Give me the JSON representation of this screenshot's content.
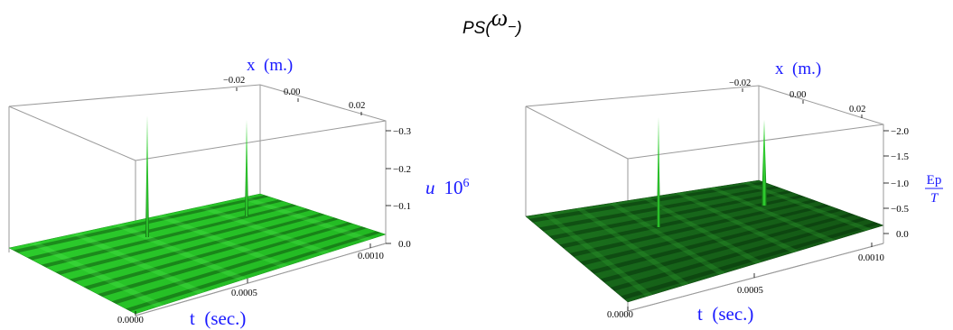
{
  "figure": {
    "title_main": "PS(",
    "title_symbol": "ω",
    "title_subscript": "−",
    "title_close": ")"
  },
  "colors": {
    "surface_light": "#2fd12f",
    "surface_mid": "#1aa51a",
    "surface_dark": "#0b3d0b",
    "axis_label": "#1a1aff",
    "box_line": "#9a9a9a",
    "tick_text": "#000000"
  },
  "chart_data": [
    {
      "type": "surface3d",
      "xlabel": "x  (m.)",
      "tlabel": "t  (sec.)",
      "zlabel_main": "u",
      "zlabel_exp_base": "10",
      "zlabel_exp_power": "6",
      "x_ticks": [
        "−0.02",
        "0.00",
        "0.02"
      ],
      "t_ticks": [
        "0.0000",
        "0.0005",
        "0.0010"
      ],
      "z_ticks": [
        "−0.3",
        "−0.2",
        "−0.1",
        "0.0"
      ],
      "x_range": [
        -0.02,
        0.02
      ],
      "t_range": [
        0.0,
        0.001
      ],
      "z_range": [
        0.0,
        -0.3
      ],
      "grid": false,
      "peaks": [
        {
          "x": 0.0,
          "t": 0.0003,
          "z": -0.28
        },
        {
          "x": 0.0,
          "t": 0.0007,
          "z": -0.27
        }
      ]
    },
    {
      "type": "surface3d",
      "xlabel": "x  (m.)",
      "tlabel": "t  (sec.)",
      "zlabel_num": "Ep",
      "zlabel_den": "T",
      "x_ticks": [
        "−0.02",
        "0.00",
        "0.02"
      ],
      "t_ticks": [
        "0.0000",
        "0.0005",
        "0.0010"
      ],
      "z_ticks": [
        "−2.0",
        "−1.5",
        "−1.0",
        "−0.5",
        "0.0"
      ],
      "x_range": [
        -0.02,
        0.02
      ],
      "t_range": [
        0.0,
        0.001
      ],
      "z_range": [
        0.0,
        -2.0
      ],
      "grid": false,
      "peaks": [
        {
          "x": 0.0,
          "t": 0.0003,
          "z": -1.9
        },
        {
          "x": 0.0,
          "t": 0.0007,
          "z": -1.85
        }
      ]
    }
  ]
}
